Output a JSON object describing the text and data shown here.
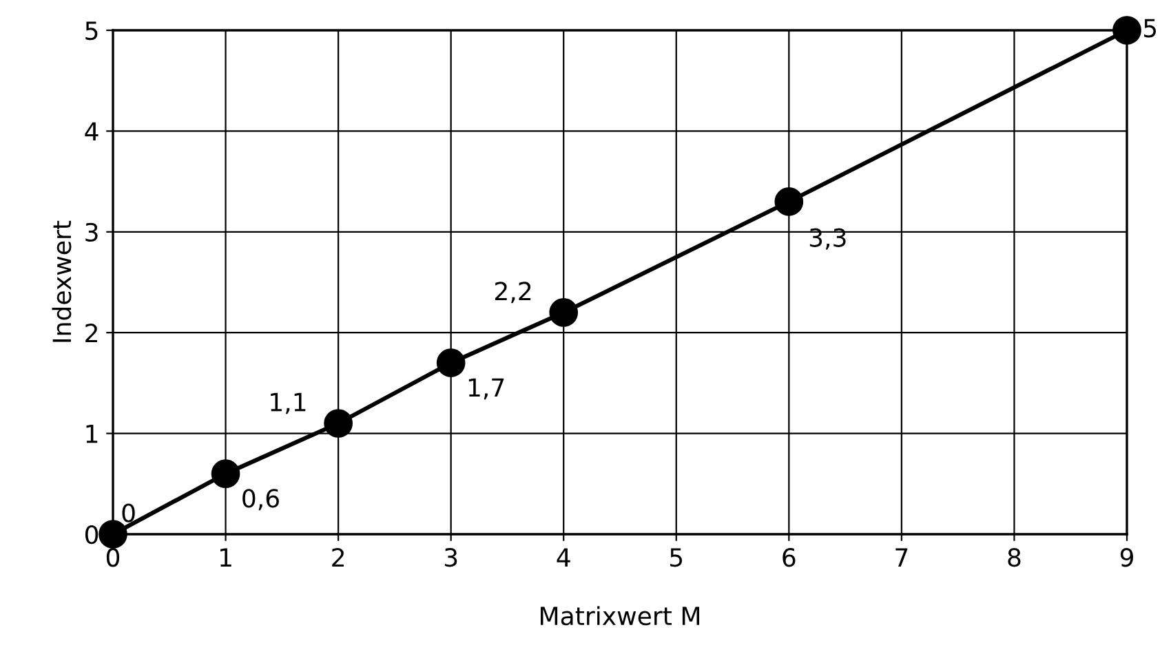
{
  "chart_data": {
    "type": "line",
    "xlabel": "Matrixwert M",
    "ylabel": "Indexwert",
    "x": [
      0,
      1,
      2,
      3,
      4,
      6,
      9
    ],
    "series": [
      {
        "color": "#000000",
        "values": [
          0,
          0.6,
          1.1,
          1.7,
          2.2,
          3.3,
          5
        ],
        "value_labels": [
          "0",
          "0,6",
          "1,1",
          "1,7",
          "2,2",
          "3,3",
          "5"
        ]
      }
    ],
    "xlim": [
      0,
      9
    ],
    "ylim": [
      0,
      5
    ],
    "xticks": [
      0,
      1,
      2,
      3,
      4,
      5,
      6,
      7,
      8,
      9
    ],
    "yticks": [
      0,
      1,
      2,
      3,
      4,
      5
    ],
    "grid": true,
    "marker": "circle",
    "line_style": "solid"
  }
}
